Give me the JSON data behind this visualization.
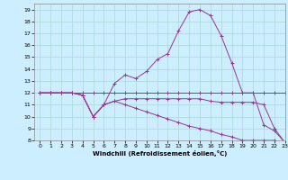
{
  "xlabel": "Windchill (Refroidissement éolien,°C)",
  "bg_color": "#cceeff",
  "line_color": "#993399",
  "series": [
    {
      "x": [
        0,
        1,
        2,
        3,
        4,
        5,
        6,
        7,
        8,
        9,
        10,
        11,
        12,
        13,
        14,
        15,
        16,
        17,
        18,
        19,
        20,
        21,
        22,
        23
      ],
      "y": [
        12,
        12,
        12,
        12,
        12,
        12,
        12,
        12,
        12,
        12,
        12,
        12,
        12,
        12,
        12,
        12,
        12,
        12,
        12,
        12,
        12,
        12,
        12,
        12
      ]
    },
    {
      "x": [
        0,
        1,
        2,
        3,
        4,
        5,
        6,
        7,
        8,
        9,
        10,
        11,
        12,
        13,
        14,
        15,
        16,
        17,
        18,
        19,
        20,
        21,
        22,
        23
      ],
      "y": [
        12,
        12,
        12,
        12,
        11.8,
        10.0,
        11.0,
        12.8,
        13.5,
        13.2,
        13.8,
        14.8,
        15.3,
        17.2,
        18.8,
        19.0,
        18.5,
        16.8,
        14.5,
        12.0,
        12.0,
        9.3,
        8.8,
        7.8
      ]
    },
    {
      "x": [
        0,
        1,
        2,
        3,
        4,
        5,
        6,
        7,
        8,
        9,
        10,
        11,
        12,
        13,
        14,
        15,
        16,
        17,
        18,
        19,
        20,
        21,
        22,
        23
      ],
      "y": [
        12,
        12,
        12,
        12,
        11.8,
        10.0,
        11.0,
        11.3,
        11.5,
        11.5,
        11.5,
        11.5,
        11.5,
        11.5,
        11.5,
        11.5,
        11.3,
        11.2,
        11.2,
        11.2,
        11.2,
        11.0,
        9.0,
        7.8
      ]
    },
    {
      "x": [
        0,
        1,
        2,
        3,
        4,
        5,
        6,
        7,
        8,
        9,
        10,
        11,
        12,
        13,
        14,
        15,
        16,
        17,
        18,
        19,
        20,
        21,
        22,
        23
      ],
      "y": [
        12,
        12,
        12,
        12,
        11.8,
        10.0,
        11.0,
        11.3,
        11.0,
        10.7,
        10.4,
        10.1,
        9.8,
        9.5,
        9.2,
        9.0,
        8.8,
        8.5,
        8.3,
        8.0,
        8.0,
        8.0,
        8.0,
        7.8
      ]
    }
  ],
  "ylim": [
    8,
    19.5
  ],
  "xlim": [
    -0.5,
    23
  ],
  "yticks": [
    8,
    9,
    10,
    11,
    12,
    13,
    14,
    15,
    16,
    17,
    18,
    19
  ],
  "xticks": [
    0,
    1,
    2,
    3,
    4,
    5,
    6,
    7,
    8,
    9,
    10,
    11,
    12,
    13,
    14,
    15,
    16,
    17,
    18,
    19,
    20,
    21,
    22,
    23
  ],
  "marker": "+",
  "grid_color": "#aad8d8",
  "figsize": [
    3.2,
    2.0
  ],
  "dpi": 100
}
